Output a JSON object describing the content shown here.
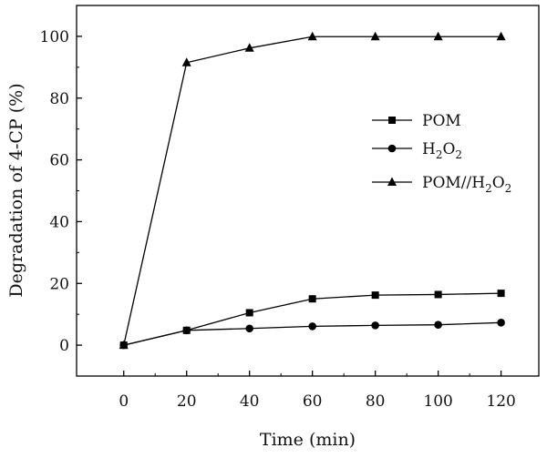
{
  "chart_data": {
    "type": "line",
    "xlabel": "Time (min)",
    "ylabel": "Degradation of 4-CP (%)",
    "xlim": [
      -15,
      132
    ],
    "ylim": [
      -10,
      110
    ],
    "x_ticks": [
      0,
      20,
      40,
      60,
      80,
      100,
      120
    ],
    "y_ticks": [
      0,
      20,
      40,
      60,
      80,
      100
    ],
    "grid": false,
    "legend_position": "center-right",
    "x": [
      0,
      20,
      40,
      60,
      80,
      100,
      120
    ],
    "series": [
      {
        "name": "POM",
        "marker": "square",
        "values": [
          0,
          4.8,
          10.5,
          15.0,
          16.2,
          16.4,
          16.8
        ]
      },
      {
        "name": "H2O2",
        "label_parts": [
          "H",
          "2",
          "O",
          "2"
        ],
        "marker": "circle",
        "values": [
          0,
          4.8,
          5.4,
          6.1,
          6.4,
          6.6,
          7.3
        ]
      },
      {
        "name": "POM//H2O2",
        "label_parts": [
          "POM//H",
          "2",
          "O",
          "2"
        ],
        "marker": "triangle",
        "values": [
          0,
          91.5,
          96.2,
          99.9,
          99.9,
          99.9,
          99.9
        ]
      }
    ]
  }
}
